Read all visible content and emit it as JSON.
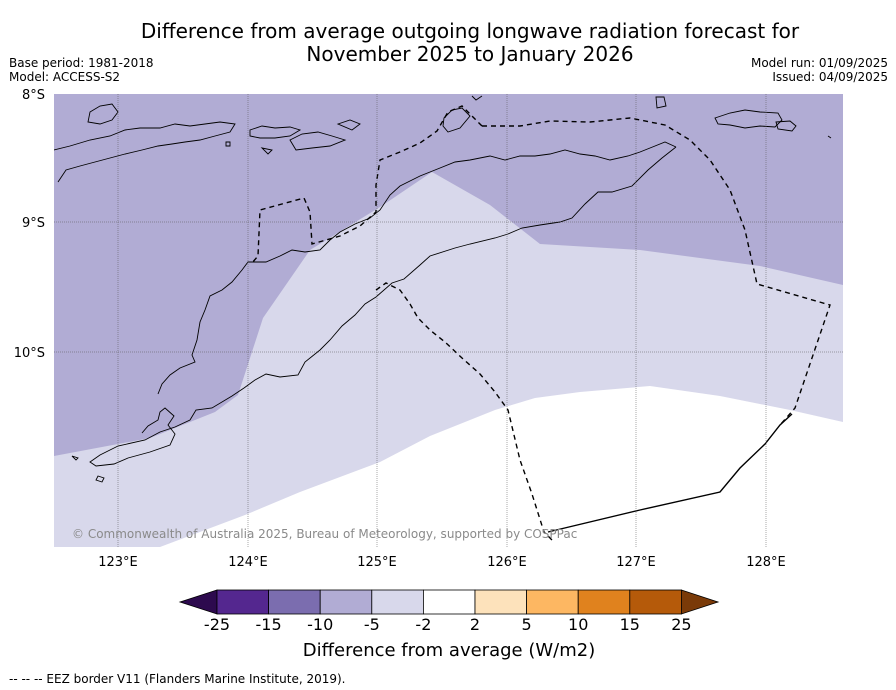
{
  "title_line1": "Difference from average outgoing longwave radiation forecast for",
  "title_line2": "November 2025 to January 2026",
  "base_period": "Base period: 1981-2018",
  "model": "Model: ACCESS-S2",
  "model_run": "Model run: 01/09/2025",
  "issued": "Issued: 04/09/2025",
  "lat_labels": [
    "8°S",
    "9°S",
    "10°S"
  ],
  "lon_labels": [
    "123°E",
    "124°E",
    "125°E",
    "126°E",
    "127°E",
    "128°E"
  ],
  "copyright": "© Commonwealth of Australia 2025, Bureau of Meteorology, supported by COSPPac",
  "colorbar": {
    "title": "Difference from average (W/m2)",
    "tick_labels": [
      "-25",
      "-15",
      "-10",
      "-5",
      "-2",
      "2",
      "5",
      "10",
      "15",
      "25"
    ],
    "colors": [
      "#2d0a4e",
      "#54278f",
      "#7b6daf",
      "#b1acd4",
      "#d8d8eb",
      "#ffffff",
      "#fde2bb",
      "#fdb762",
      "#e0821e",
      "#b55a0a",
      "#7a3a08"
    ]
  },
  "footer": "-- -- -- EEZ border V11 (Flanders Marine Institute, 2019).",
  "colors": {
    "band_-10_-5": "#b1acd4",
    "band_-5_-2": "#d8d8eb",
    "band_-2_2": "#ffffff"
  }
}
